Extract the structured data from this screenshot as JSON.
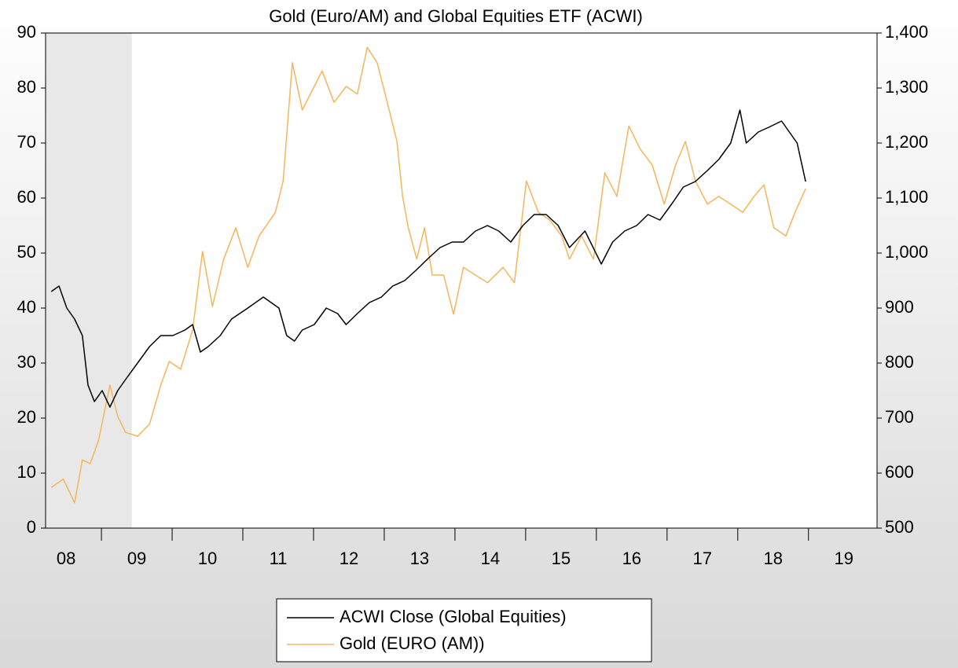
{
  "chart_data": {
    "type": "line",
    "title": "Gold (Euro/AM) and Global Equities ETF (ACWI)",
    "xlim": [
      2008.21,
      2019.97
    ],
    "xticks": [
      {
        "value": 2008.5,
        "label": "08"
      },
      {
        "value": 2009.5,
        "label": "09"
      },
      {
        "value": 2010.5,
        "label": "10"
      },
      {
        "value": 2011.5,
        "label": "11"
      },
      {
        "value": 2012.5,
        "label": "12"
      },
      {
        "value": 2013.5,
        "label": "13"
      },
      {
        "value": 2014.5,
        "label": "14"
      },
      {
        "value": 2015.5,
        "label": "15"
      },
      {
        "value": 2016.5,
        "label": "16"
      },
      {
        "value": 2017.5,
        "label": "17"
      },
      {
        "value": 2018.5,
        "label": "18"
      },
      {
        "value": 2019.5,
        "label": "19"
      }
    ],
    "ylim": [
      0,
      90
    ],
    "yticks": [
      0,
      10,
      20,
      30,
      40,
      50,
      60,
      70,
      80,
      90
    ],
    "y2lim": [
      500,
      1400
    ],
    "y2ticks": [
      500,
      600,
      700,
      800,
      900,
      {
        "value": 1000,
        "label": "1,000"
      },
      {
        "value": 1100,
        "label": "1,100"
      },
      {
        "value": 1200,
        "label": "1,200"
      },
      {
        "value": 1300,
        "label": "1,300"
      },
      {
        "value": 1400,
        "label": "1,400"
      }
    ],
    "shaded_range": [
      2008.21,
      2009.43
    ],
    "legend": "bottom",
    "series": [
      {
        "name": "ACWI Close (Global Equities)",
        "color": "#000000",
        "axis": "y",
        "x": [
          2008.29,
          2008.4,
          2008.51,
          2008.62,
          2008.73,
          2008.81,
          2008.9,
          2009.01,
          2009.12,
          2009.23,
          2009.34,
          2009.51,
          2009.68,
          2009.84,
          2010.01,
          2010.18,
          2010.29,
          2010.4,
          2010.51,
          2010.68,
          2010.84,
          2011.07,
          2011.29,
          2011.51,
          2011.62,
          2011.73,
          2011.84,
          2012.01,
          2012.18,
          2012.34,
          2012.46,
          2012.62,
          2012.79,
          2012.96,
          2013.12,
          2013.29,
          2013.46,
          2013.62,
          2013.79,
          2013.96,
          2014.12,
          2014.29,
          2014.46,
          2014.62,
          2014.79,
          2014.96,
          2015.12,
          2015.29,
          2015.46,
          2015.62,
          2015.84,
          2016.07,
          2016.23,
          2016.4,
          2016.57,
          2016.73,
          2016.9,
          2017.07,
          2017.23,
          2017.4,
          2017.57,
          2017.73,
          2017.9,
          2018.03,
          2018.12,
          2018.29,
          2018.46,
          2018.62,
          2018.73,
          2018.84,
          2018.96
        ],
        "values": [
          43,
          44,
          40,
          38,
          35,
          26,
          23,
          25,
          22,
          25,
          27,
          30,
          33,
          35,
          35,
          36,
          37,
          32,
          33,
          35,
          38,
          40,
          42,
          40,
          35,
          34,
          36,
          37,
          40,
          39,
          37,
          39,
          41,
          42,
          44,
          45,
          47,
          49,
          51,
          52,
          52,
          54,
          55,
          54,
          52,
          55,
          57,
          57,
          55,
          51,
          54,
          48,
          52,
          54,
          55,
          57,
          56,
          59,
          62,
          63,
          65,
          67,
          70,
          76,
          70,
          72,
          73,
          74,
          72,
          70,
          63
        ]
      },
      {
        "name": "Gold (EURO (AM))",
        "color": "#f5b55a",
        "axis": "y2",
        "x": [
          2008.29,
          2008.46,
          2008.62,
          2008.73,
          2008.84,
          2008.96,
          2009.12,
          2009.23,
          2009.34,
          2009.51,
          2009.68,
          2009.84,
          2009.96,
          2010.12,
          2010.29,
          2010.43,
          2010.57,
          2010.73,
          2010.9,
          2011.07,
          2011.23,
          2011.46,
          2011.57,
          2011.7,
          2011.84,
          2012.01,
          2012.12,
          2012.29,
          2012.46,
          2012.62,
          2012.76,
          2012.9,
          2013.07,
          2013.18,
          2013.26,
          2013.34,
          2013.46,
          2013.57,
          2013.68,
          2013.84,
          2013.98,
          2014.12,
          2014.29,
          2014.46,
          2014.68,
          2014.84,
          2015.01,
          2015.18,
          2015.34,
          2015.51,
          2015.62,
          2015.79,
          2015.96,
          2016.12,
          2016.29,
          2016.46,
          2016.62,
          2016.79,
          2016.96,
          2017.12,
          2017.26,
          2017.4,
          2017.57,
          2017.73,
          2017.9,
          2018.07,
          2018.23,
          2018.37,
          2018.51,
          2018.68,
          2018.81,
          2018.96
        ],
        "values": [
          574,
          589,
          546,
          624,
          617,
          660,
          760,
          703,
          674,
          667,
          689,
          760,
          803,
          789,
          860,
          1003,
          903,
          989,
          1046,
          974,
          1031,
          1074,
          1131,
          1346,
          1260,
          1303,
          1331,
          1274,
          1303,
          1289,
          1374,
          1346,
          1260,
          1203,
          1103,
          1046,
          989,
          1046,
          960,
          960,
          889,
          974,
          960,
          946,
          974,
          946,
          1131,
          1074,
          1060,
          1031,
          989,
          1031,
          989,
          1146,
          1103,
          1231,
          1189,
          1160,
          1089,
          1160,
          1203,
          1131,
          1089,
          1103,
          1089,
          1074,
          1103,
          1124,
          1046,
          1031,
          1074,
          1117
        ]
      }
    ]
  }
}
